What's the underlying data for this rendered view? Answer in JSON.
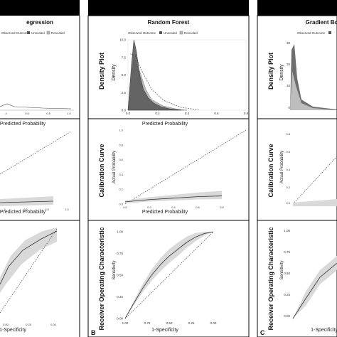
{
  "colors": {
    "header": "#000000",
    "panel_text": "#111111",
    "dark_fill": "#555555",
    "light_fill": "#bdbdbd",
    "band_fill": "#d9d9d9",
    "line": "#444444"
  },
  "columns": [
    {
      "id": "lr",
      "title": "Logistic Regression",
      "visible_title": "egression",
      "letter": ""
    },
    {
      "id": "rf",
      "title": "Random Forest",
      "visible_title": "Random Forest",
      "letter": "B"
    },
    {
      "id": "gb",
      "title": "Gradient Boosting",
      "visible_title": "Gradient Boo",
      "letter": "C"
    }
  ],
  "row_titles": [
    "Density Plot",
    "Calibration Curve",
    "Receiver Operating Characteristic"
  ],
  "legend": {
    "observed": "Observed Outcome",
    "unscaled": "Unscaled",
    "rescaled": "Rescaled"
  },
  "labels": {
    "density_y": "Density",
    "density_x": "Predicted Probability",
    "calib_y": "Actual Probability",
    "calib_x": "Predicted Probability",
    "roc_y": "Sensitivity",
    "roc_x": "1-Specificity"
  },
  "chart_data": [
    {
      "type": "area",
      "panel": "density-rf",
      "title": "Density Plot",
      "xlabel": "Predicted Probability",
      "ylabel": "Density",
      "xlim": [
        0,
        1
      ],
      "ylim": [
        0,
        10
      ],
      "xticks": [
        "0.0",
        "0.2",
        "0.4",
        "0.6",
        "0.8"
      ],
      "yticks": [
        "0.0",
        "2.5",
        "5.0",
        "7.5",
        "10.0"
      ],
      "series": [
        {
          "name": "Observed Outcome",
          "x": [
            0.0,
            0.03,
            0.05,
            0.07,
            0.1,
            0.13,
            0.17,
            0.22,
            0.28,
            0.35,
            0.45
          ],
          "values": [
            0,
            6.5,
            10,
            8.5,
            5,
            3,
            1.8,
            1.0,
            0.5,
            0.2,
            0
          ]
        },
        {
          "name": "Unscaled",
          "x": [
            0.0,
            0.05,
            0.1,
            0.15,
            0.2,
            0.3,
            0.4,
            0.5
          ],
          "values": [
            0,
            7.5,
            5.5,
            3.0,
            1.5,
            0.6,
            0.2,
            0
          ]
        }
      ]
    },
    {
      "type": "line",
      "panel": "calibration-rf",
      "title": "Calibration Curve",
      "xlabel": "Predicted Probability",
      "ylabel": "Actual Probability",
      "xlim": [
        0,
        1
      ],
      "ylim": [
        0,
        1
      ],
      "xticks": [
        "0.0",
        "0.2",
        "0.4",
        "0.6",
        "0.8"
      ],
      "yticks": [
        "0.0",
        "0.2",
        "0.4",
        "0.6",
        "0.8",
        "1.0"
      ],
      "series": [
        {
          "name": "Calibration",
          "x": [
            0.0,
            0.2,
            0.4,
            0.6,
            0.8
          ],
          "values": [
            0.03,
            0.06,
            0.08,
            0.1,
            0.11
          ]
        },
        {
          "name": "Ideal",
          "x": [
            0,
            1
          ],
          "values": [
            0,
            1
          ]
        }
      ]
    },
    {
      "type": "line",
      "panel": "roc-rf",
      "title": "Receiver Operating Characteristic",
      "xlabel": "1-Specificity",
      "ylabel": "Sensitivity",
      "xlim": [
        1,
        0
      ],
      "ylim": [
        0,
        1
      ],
      "xticks": [
        "1.00",
        "0.75",
        "0.50",
        "0.25",
        "0.00"
      ],
      "yticks": [
        "0.00",
        "0.25",
        "0.50",
        "0.75",
        "1.00"
      ],
      "series": [
        {
          "name": "ROC",
          "x": [
            1.0,
            0.9,
            0.8,
            0.7,
            0.6,
            0.5,
            0.4,
            0.3,
            0.2,
            0.1,
            0.0
          ],
          "values": [
            0.0,
            0.18,
            0.35,
            0.5,
            0.62,
            0.72,
            0.8,
            0.88,
            0.94,
            0.98,
            1.0
          ]
        }
      ]
    }
  ]
}
